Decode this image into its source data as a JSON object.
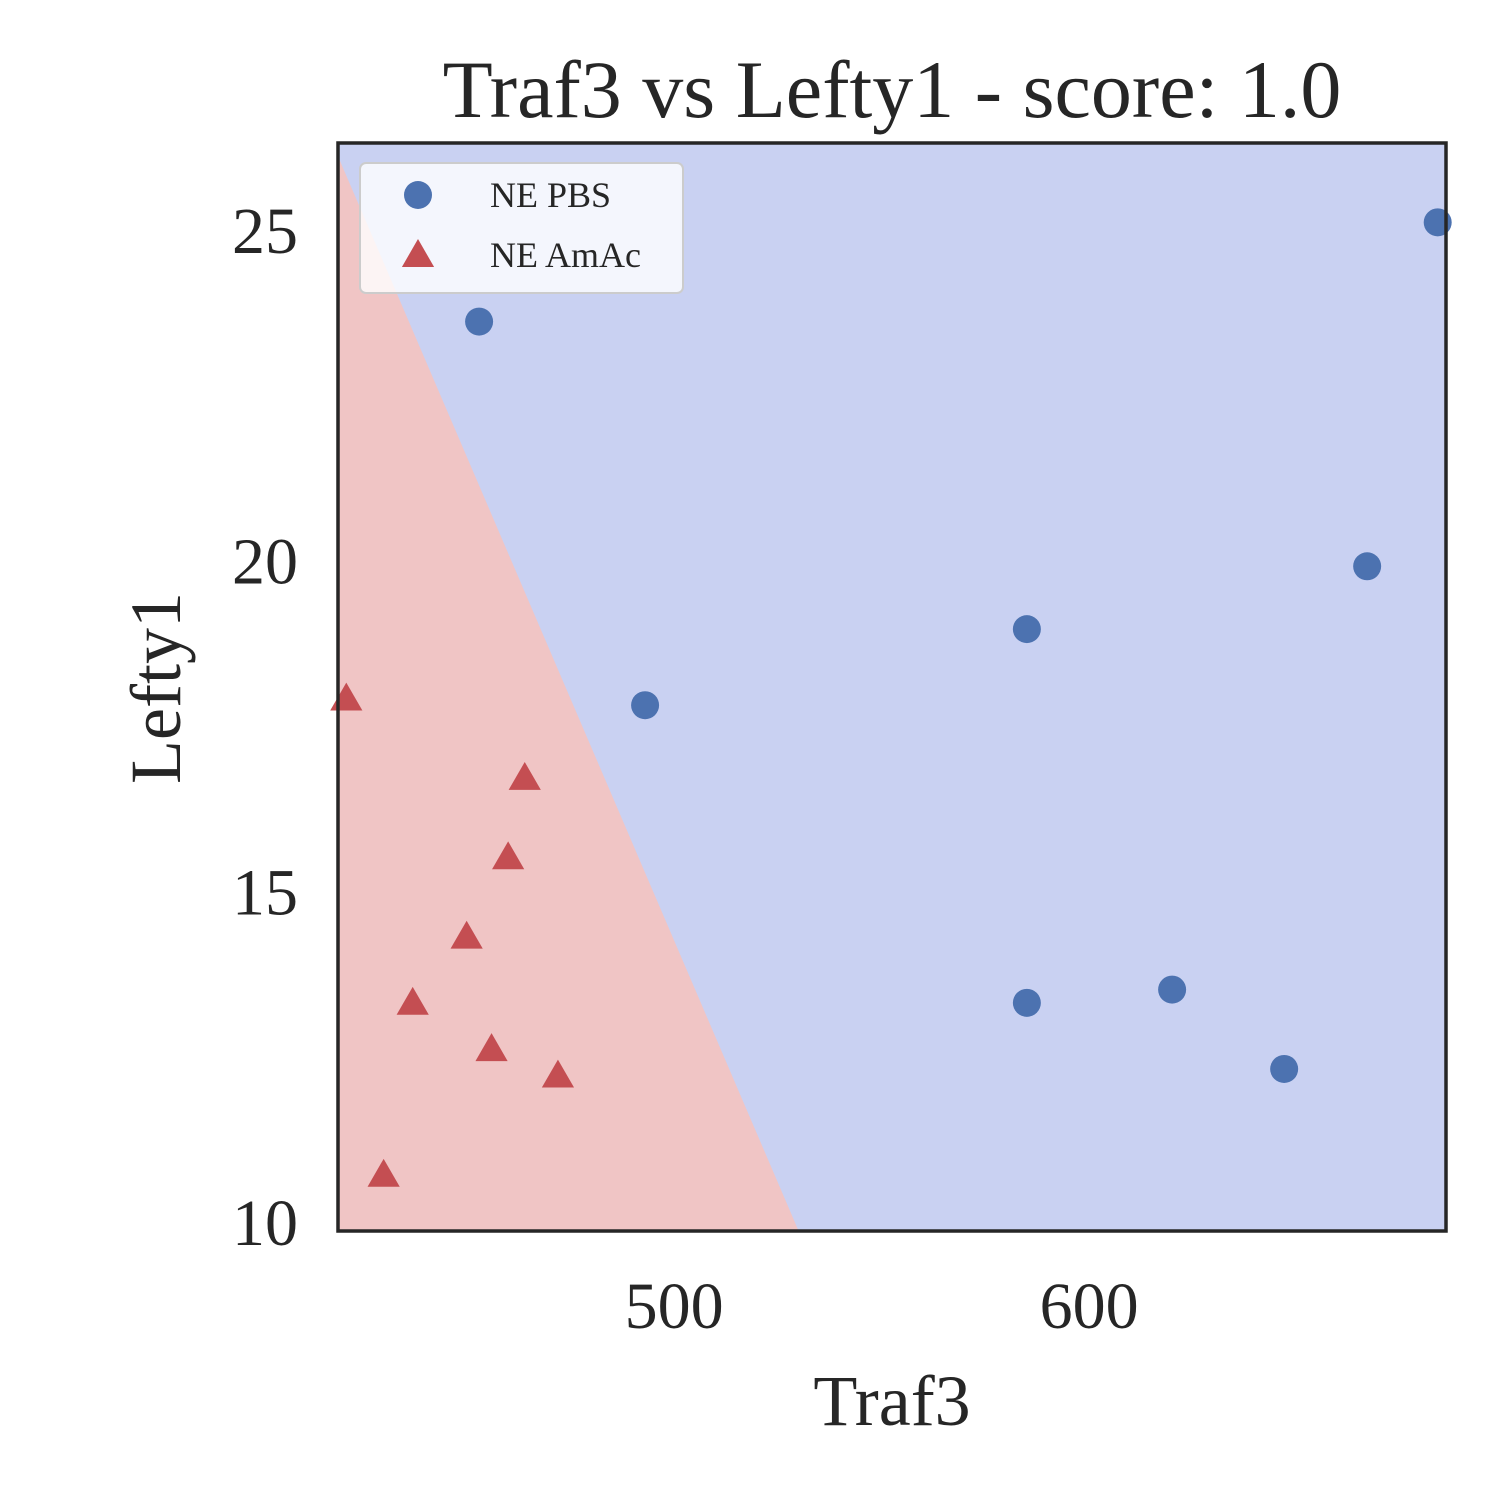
{
  "chart_data": {
    "type": "scatter",
    "title": "Traf3 vs Lefty1 - score: 1.0",
    "xlabel": "Traf3",
    "ylabel": "Lefty1",
    "xlim": [
      419,
      686
    ],
    "ylim": [
      9.85,
      26.3
    ],
    "xticks": [
      500,
      600
    ],
    "yticks": [
      10,
      15,
      20,
      25
    ],
    "grid": false,
    "legend_position": "top-left",
    "decision_regions": [
      {
        "class": "NE AmAc",
        "color": "#f0c5c5",
        "polygon": [
          [
            419,
            26.1
          ],
          [
            530,
            9.85
          ],
          [
            419,
            9.85
          ]
        ]
      },
      {
        "class": "NE PBS",
        "color": "#c9d1f2"
      }
    ],
    "series": [
      {
        "name": "NE PBS",
        "marker": "circle",
        "color": "#4c72b0",
        "points": [
          [
            453,
            23.6
          ],
          [
            493,
            17.8
          ],
          [
            585,
            18.95
          ],
          [
            585,
            13.3
          ],
          [
            620,
            13.5
          ],
          [
            647,
            12.3
          ],
          [
            667,
            19.9
          ],
          [
            684,
            25.1
          ]
        ]
      },
      {
        "name": "NE AmAc",
        "marker": "triangle",
        "color": "#c44e52",
        "points": [
          [
            421,
            17.9
          ],
          [
            430,
            10.7
          ],
          [
            437,
            13.3
          ],
          [
            450,
            14.3
          ],
          [
            456,
            12.6
          ],
          [
            460,
            15.5
          ],
          [
            464,
            16.7
          ],
          [
            472,
            12.2
          ]
        ]
      }
    ]
  }
}
